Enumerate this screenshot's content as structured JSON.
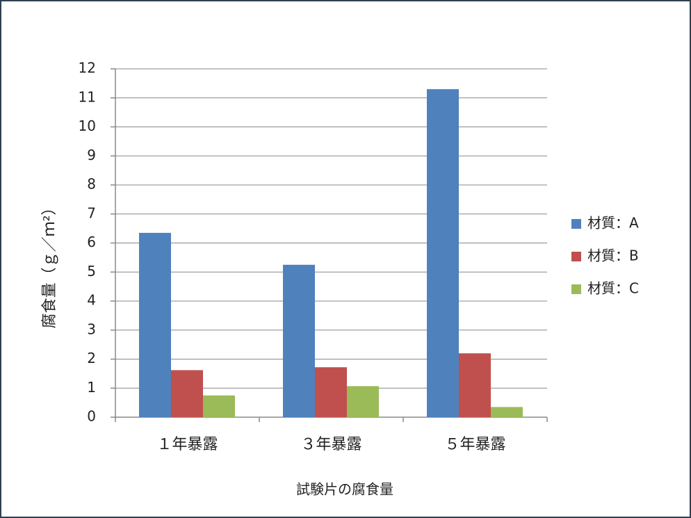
{
  "chart_data": {
    "type": "bar",
    "x_label": "試験片の腐食量",
    "y_label": "腐食量（ｇ／ｍ²）",
    "categories": [
      "１年暴露",
      "３年暴露",
      "５年暴露"
    ],
    "series": [
      {
        "name": "材質：A",
        "color": "#4f81bd",
        "values": [
          6.35,
          5.25,
          11.3
        ]
      },
      {
        "name": "材質：B",
        "color": "#c0504d",
        "values": [
          1.62,
          1.72,
          2.2
        ]
      },
      {
        "name": "材質：C",
        "color": "#9bbb59",
        "values": [
          0.75,
          1.07,
          0.35
        ]
      }
    ],
    "ylim": [
      0,
      12
    ],
    "yticks": [
      0,
      1,
      2,
      3,
      4,
      5,
      6,
      7,
      8,
      9,
      10,
      11,
      12
    ],
    "grid": true,
    "legend": "right"
  }
}
